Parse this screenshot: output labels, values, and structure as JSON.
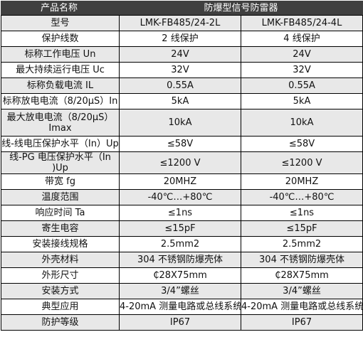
{
  "header": {
    "param_label": "产品名称",
    "product_label": "防爆型信号防雷器"
  },
  "rows": [
    {
      "param": "型号",
      "v1": "LMK-FB485/24-2L",
      "v2": "LMK-FB485/24-4L"
    },
    {
      "param": "保护线数",
      "v1": "2 线保护",
      "v2": "4 线保护"
    },
    {
      "param": "标称工作电压 Un",
      "v1": "24V",
      "v2": "24V"
    },
    {
      "param": "最大持续运行电压 Uc",
      "v1": "32V",
      "v2": "32V"
    },
    {
      "param": "标称负载电流 IL",
      "v1": "0.55A",
      "v2": "0.55A"
    },
    {
      "param": "标称放电电流（8/20μS）In",
      "v1": "5kA",
      "v2": "5kA"
    },
    {
      "param": "最大放电电流（8/20μS）Imax",
      "v1": "10kA",
      "v2": "10kA"
    },
    {
      "param": "线-线电压保护水平（In）Up",
      "v1": "≤58V",
      "v2": "≤58V"
    },
    {
      "param": "线-PG 电压保护水平（In )Up",
      "v1": "≤1200 V",
      "v2": "≤1200 V"
    },
    {
      "param": "带宽 fg",
      "v1": "20MHZ",
      "v2": "20MHZ"
    },
    {
      "param": "温度范围",
      "v1": "-40℃…+80℃",
      "v2": "-40℃…+80℃"
    },
    {
      "param": "响应时间 Ta",
      "v1": "≤1ns",
      "v2": "≤1ns"
    },
    {
      "param": "寄生电容",
      "v1": "≤15pF",
      "v2": "≤15pF"
    },
    {
      "param": "安装接线规格",
      "v1": "2.5mm2",
      "v2": "2.5mm2"
    },
    {
      "param": "外壳材料",
      "v1": "304 不锈钢防爆壳体",
      "v2": "304 不锈钢防爆壳体"
    },
    {
      "param": "外形尺寸",
      "v1": "₵28X75mm",
      "v2": "₵28X75mm"
    },
    {
      "param": "安装方式",
      "v1": "3/4”螺丝",
      "v2": "3/4”螺丝"
    },
    {
      "param": "典型应用",
      "v1": "4-20mA 测量电路或总线系统",
      "v2": "4-20mA 测量电路或总线系统"
    },
    {
      "param": "防护等级",
      "v1": "IP67",
      "v2": "IP67"
    }
  ]
}
